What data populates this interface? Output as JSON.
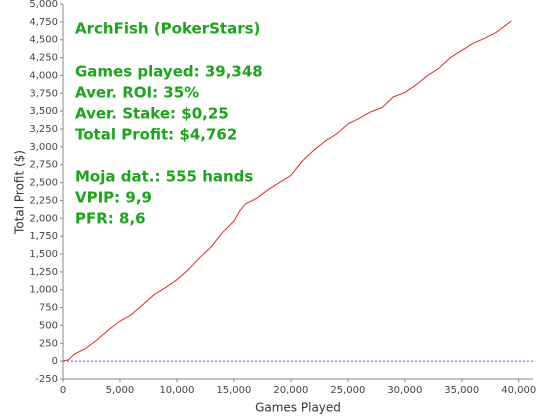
{
  "chart_data": {
    "type": "line",
    "x_label": "Games Played",
    "y_label": "Total Profit ($)",
    "annotations": [
      "ArchFish (PokerStars)",
      "Games played: 39,348",
      "Aver. ROI: 35%",
      "Aver. Stake: $0,25",
      "Total Profit: $4,762",
      "Moja dat.: 555 hands",
      "VPIP: 9,9",
      "PFR: 8,6"
    ],
    "annotation_color": "#1aa51a",
    "x": [
      0,
      500,
      1000,
      2000,
      3000,
      4000,
      5000,
      6000,
      7000,
      8000,
      9000,
      10000,
      11000,
      12000,
      13000,
      14000,
      15000,
      15500,
      16000,
      17000,
      18000,
      19000,
      20000,
      21000,
      22000,
      23000,
      24000,
      25000,
      26000,
      27000,
      28000,
      29000,
      30000,
      31000,
      32000,
      33000,
      34000,
      35000,
      36000,
      37000,
      38000,
      39348
    ],
    "series": [
      {
        "name": "Total Profit",
        "color": "#e8262a",
        "values": [
          0,
          20,
          100,
          180,
          300,
          440,
          560,
          650,
          790,
          930,
          1030,
          1140,
          1280,
          1450,
          1600,
          1800,
          1960,
          2100,
          2200,
          2280,
          2400,
          2500,
          2600,
          2800,
          2950,
          3080,
          3180,
          3320,
          3400,
          3490,
          3550,
          3700,
          3760,
          3870,
          4000,
          4100,
          4250,
          4350,
          4450,
          4520,
          4600,
          4762
        ]
      }
    ],
    "zero_line_color": "#5555dd",
    "xlim": [
      0,
      41250
    ],
    "ylim": [
      -250,
      5000
    ],
    "xticks": [
      0,
      {
        "value": 5000,
        "label": "5,000"
      },
      {
        "value": 10000,
        "label": "10,000"
      },
      {
        "value": 15000,
        "label": "15,000"
      },
      {
        "value": 20000,
        "label": "20,000"
      },
      {
        "value": 25000,
        "label": "25,000"
      },
      {
        "value": 30000,
        "label": "30,000"
      },
      {
        "value": 35000,
        "label": "35,000"
      },
      {
        "value": 40000,
        "label": "40,000"
      }
    ],
    "yticks": [
      -250,
      0,
      250,
      500,
      750,
      {
        "value": 1000,
        "label": "1,000"
      },
      {
        "value": 1250,
        "label": "1,250"
      },
      {
        "value": 1500,
        "label": "1,500"
      },
      {
        "value": 1750,
        "label": "1,750"
      },
      {
        "value": 2000,
        "label": "2,000"
      },
      {
        "value": 2250,
        "label": "2,250"
      },
      {
        "value": 2500,
        "label": "2,500"
      },
      {
        "value": 2750,
        "label": "2,750"
      },
      {
        "value": 3000,
        "label": "3,000"
      },
      {
        "value": 3250,
        "label": "3,250"
      },
      {
        "value": 3500,
        "label": "3,500"
      },
      {
        "value": 3750,
        "label": "3,750"
      },
      {
        "value": 4000,
        "label": "4,000"
      },
      {
        "value": 4250,
        "label": "4,250"
      },
      {
        "value": 4500,
        "label": "4,500"
      },
      {
        "value": 4750,
        "label": "4,750"
      },
      {
        "value": 5000,
        "label": "5,000"
      }
    ]
  }
}
